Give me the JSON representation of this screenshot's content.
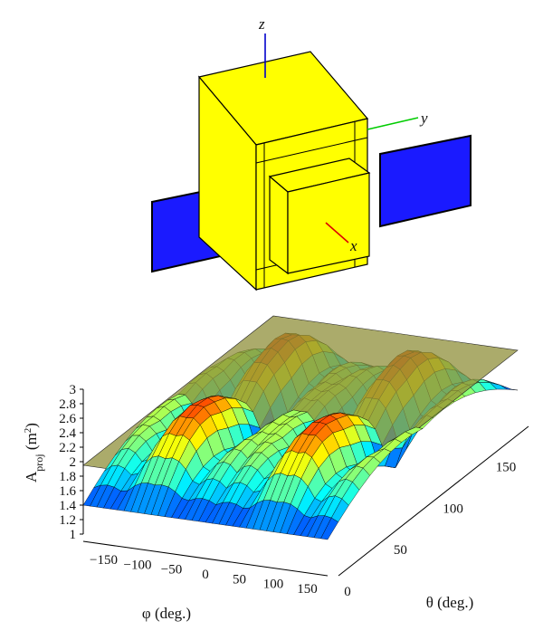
{
  "figure": {
    "satellite": {
      "axis_labels": [
        "z",
        "y",
        "x"
      ],
      "colors": {
        "body": "#ffff00",
        "panel": "#1a1aff",
        "z_axis": "#0000cc",
        "y_axis": "#00cc00",
        "x_axis": "#dd0000"
      }
    }
  },
  "chart_data": {
    "type": "surface",
    "xlabel": "φ (deg.)",
    "ylabel": "θ (deg.)",
    "zlabel_main": "A",
    "zlabel_sub": "proj",
    "zlabel_unit_open": " (m",
    "zlabel_unit_sup": "2",
    "zlabel_unit_close": ")",
    "xlim": [
      -180,
      180
    ],
    "ylim": [
      0,
      180
    ],
    "zlim": [
      1,
      3
    ],
    "xticks": [
      "−150",
      "−100",
      "−50",
      "0",
      "50",
      "100",
      "150"
    ],
    "yticks": [
      "0",
      "50",
      "100",
      "150"
    ],
    "zticks": [
      "3",
      "2.8",
      "2.6",
      "2.4",
      "2.2",
      "2",
      "1.8",
      "1.6",
      "1.4",
      "1.2",
      "1"
    ],
    "reference_plane_z": 1.95,
    "surface_range": {
      "min": 1.15,
      "max": 2.6
    },
    "colormap": [
      "#00008f",
      "#0000ff",
      "#0080ff",
      "#00ffff",
      "#80ff80",
      "#ffff00",
      "#ff8000",
      "#ff0000",
      "#800000"
    ]
  }
}
